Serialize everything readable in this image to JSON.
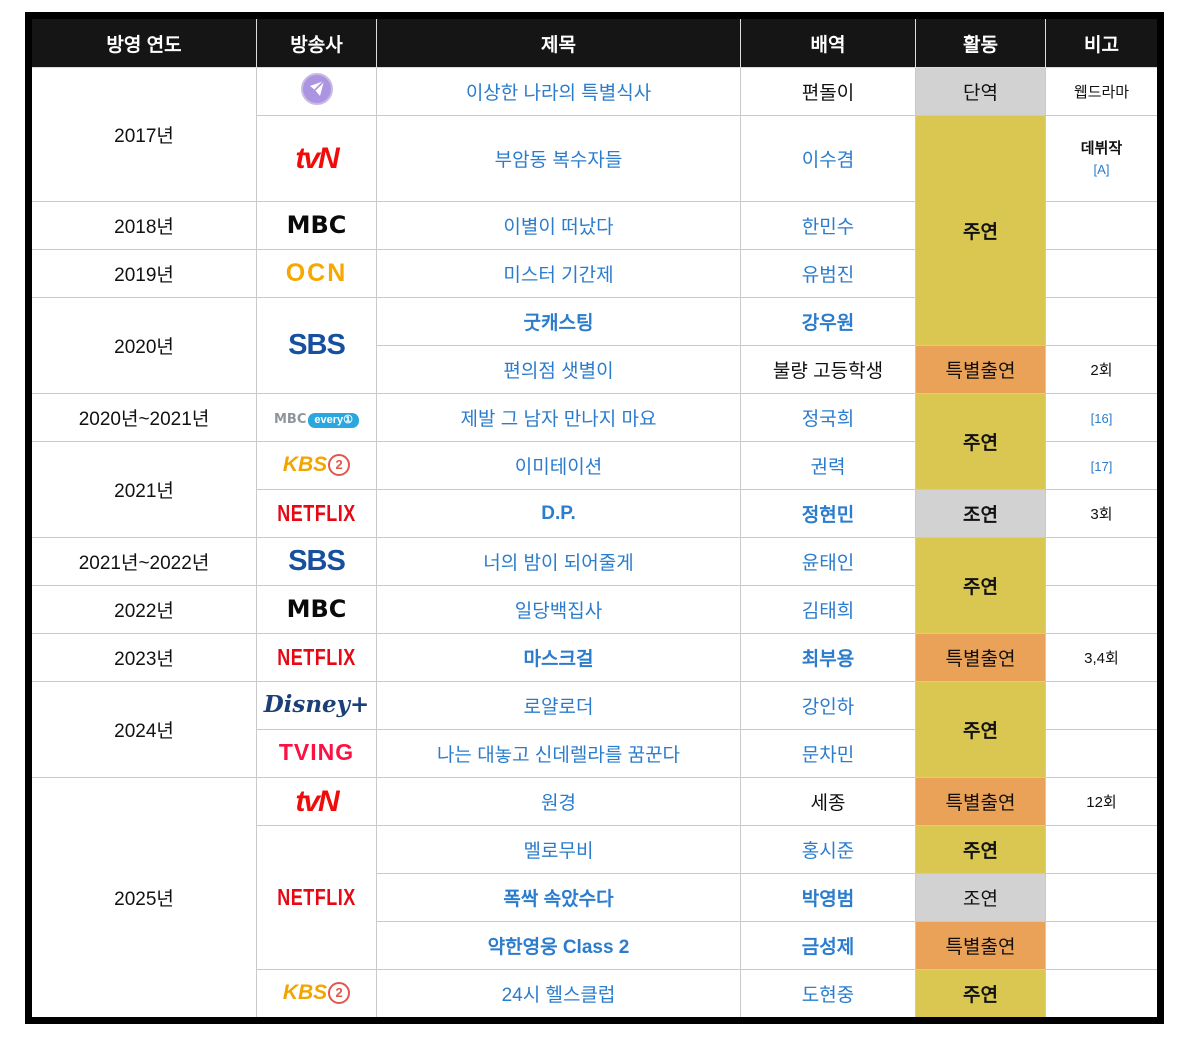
{
  "table": {
    "headers": [
      "방영 연도",
      "방송사",
      "제목",
      "배역",
      "활동",
      "비고"
    ],
    "colors": {
      "header_bg": "#151515",
      "lead_bg": "#d9c752",
      "special_bg": "#eaa158",
      "minor_bg": "#d2d2d2",
      "link_blue": "#2b7ccd",
      "grid": "#c9c9c9"
    },
    "logos": {
      "purple-play": {
        "name": "purple-play-logo",
        "color": "#ab95e2"
      },
      "tvn": {
        "name": "tvn-logo",
        "text": "tvN"
      },
      "mbc": {
        "name": "mbc-logo",
        "text": "MBC"
      },
      "ocn": {
        "name": "ocn-logo",
        "text": "OCN"
      },
      "sbs": {
        "name": "sbs-logo",
        "text": "SBS"
      },
      "mbc-every1": {
        "name": "mbc-every1-logo",
        "text": "MBC",
        "badge": "every①"
      },
      "kbs2": {
        "name": "kbs2-logo",
        "text": "KBS",
        "num": "2"
      },
      "netflix": {
        "name": "netflix-logo",
        "text": "NETFLIX"
      },
      "disney-plus": {
        "name": "disney-plus-logo",
        "text": "Disney+"
      },
      "tving": {
        "name": "tving-logo",
        "text": "TVING"
      }
    },
    "activity_labels": {
      "lead": "주연",
      "support": "조연",
      "special": "특별출연",
      "minor": "단역"
    },
    "rows": [
      {
        "tall": false,
        "year": {
          "text": "2017년",
          "rowspan": 2
        },
        "channel": {
          "logo": "purple-play",
          "rowspan": 1
        },
        "title": {
          "text": "이상한 나라의 특별식사",
          "bold": false,
          "link": true
        },
        "role": {
          "text": "편돌이",
          "link": false,
          "bold": false
        },
        "activity": {
          "text": "단역",
          "type": "minor",
          "rowspan": 1,
          "bold": false
        },
        "note": {
          "lines": [
            {
              "text": "웹드라마",
              "kind": "plain"
            }
          ]
        }
      },
      {
        "tall": true,
        "channel": {
          "logo": "tvn",
          "rowspan": 1
        },
        "title": {
          "text": "부암동 복수자들",
          "bold": false,
          "link": true
        },
        "role": {
          "text": "이수겸",
          "link": true,
          "bold": false
        },
        "activity": {
          "text": "주연",
          "type": "lead",
          "rowspan": 4,
          "bold": true
        },
        "note": {
          "lines": [
            {
              "text": "데뷔작",
              "kind": "bold"
            },
            {
              "text": "[A]",
              "kind": "ref"
            }
          ]
        }
      },
      {
        "tall": false,
        "year": {
          "text": "2018년",
          "rowspan": 1
        },
        "channel": {
          "logo": "mbc",
          "rowspan": 1
        },
        "title": {
          "text": "이별이 떠났다",
          "bold": false,
          "link": true
        },
        "role": {
          "text": "한민수",
          "link": true,
          "bold": false
        },
        "note": {
          "lines": []
        }
      },
      {
        "tall": false,
        "year": {
          "text": "2019년",
          "rowspan": 1
        },
        "channel": {
          "logo": "ocn",
          "rowspan": 1
        },
        "title": {
          "text": "미스터 기간제",
          "bold": false,
          "link": true
        },
        "role": {
          "text": "유범진",
          "link": true,
          "bold": false
        },
        "note": {
          "lines": []
        }
      },
      {
        "tall": false,
        "year": {
          "text": "2020년",
          "rowspan": 2
        },
        "channel": {
          "logo": "sbs",
          "rowspan": 2
        },
        "title": {
          "text": "굿캐스팅",
          "bold": true,
          "link": true
        },
        "role": {
          "text": "강우원",
          "link": true,
          "bold": true
        },
        "note": {
          "lines": []
        }
      },
      {
        "tall": false,
        "title": {
          "text": "편의점 샛별이",
          "bold": false,
          "link": true
        },
        "role": {
          "text": "불량 고등학생",
          "link": false,
          "bold": false
        },
        "activity": {
          "text": "특별출연",
          "type": "special",
          "rowspan": 1,
          "bold": false
        },
        "note": {
          "lines": [
            {
              "text": "2회",
              "kind": "plain"
            }
          ]
        }
      },
      {
        "tall": false,
        "year": {
          "text": "2020년~2021년",
          "rowspan": 1
        },
        "channel": {
          "logo": "mbc-every1",
          "rowspan": 1
        },
        "title": {
          "text": "제발 그 남자 만나지 마요",
          "bold": false,
          "link": true
        },
        "role": {
          "text": "정국희",
          "link": true,
          "bold": false
        },
        "activity": {
          "text": "주연",
          "type": "lead",
          "rowspan": 2,
          "bold": true
        },
        "note": {
          "lines": [
            {
              "text": "[16]",
              "kind": "ref"
            }
          ]
        }
      },
      {
        "tall": false,
        "year": {
          "text": "2021년",
          "rowspan": 2
        },
        "channel": {
          "logo": "kbs2",
          "rowspan": 1
        },
        "title": {
          "text": "이미테이션",
          "bold": false,
          "link": true
        },
        "role": {
          "text": "권력",
          "link": true,
          "bold": false
        },
        "note": {
          "lines": [
            {
              "text": "[17]",
              "kind": "ref"
            }
          ]
        }
      },
      {
        "tall": false,
        "channel": {
          "logo": "netflix",
          "rowspan": 1
        },
        "title": {
          "text": "D.P.",
          "bold": true,
          "link": true
        },
        "role": {
          "text": "정현민",
          "link": true,
          "bold": true
        },
        "activity": {
          "text": "조연",
          "type": "minor",
          "rowspan": 1,
          "bold": true
        },
        "note": {
          "lines": [
            {
              "text": "3회",
              "kind": "plain"
            }
          ]
        }
      },
      {
        "tall": false,
        "year": {
          "text": "2021년~2022년",
          "rowspan": 1
        },
        "channel": {
          "logo": "sbs",
          "rowspan": 1
        },
        "title": {
          "text": "너의 밤이 되어줄게",
          "bold": false,
          "link": true
        },
        "role": {
          "text": "윤태인",
          "link": true,
          "bold": false
        },
        "activity": {
          "text": "주연",
          "type": "lead",
          "rowspan": 2,
          "bold": true
        },
        "note": {
          "lines": []
        }
      },
      {
        "tall": false,
        "year": {
          "text": "2022년",
          "rowspan": 1
        },
        "channel": {
          "logo": "mbc",
          "rowspan": 1
        },
        "title": {
          "text": "일당백집사",
          "bold": false,
          "link": true
        },
        "role": {
          "text": "김태희",
          "link": true,
          "bold": false
        },
        "note": {
          "lines": []
        }
      },
      {
        "tall": false,
        "year": {
          "text": "2023년",
          "rowspan": 1
        },
        "channel": {
          "logo": "netflix",
          "rowspan": 1
        },
        "title": {
          "text": "마스크걸",
          "bold": true,
          "link": true
        },
        "role": {
          "text": "최부용",
          "link": true,
          "bold": true
        },
        "activity": {
          "text": "특별출연",
          "type": "special",
          "rowspan": 1,
          "bold": false
        },
        "note": {
          "lines": [
            {
              "text": "3,4회",
              "kind": "plain"
            }
          ]
        }
      },
      {
        "tall": false,
        "year": {
          "text": "2024년",
          "rowspan": 2
        },
        "channel": {
          "logo": "disney-plus",
          "rowspan": 1
        },
        "title": {
          "text": "로얄로더",
          "bold": false,
          "link": true
        },
        "role": {
          "text": "강인하",
          "link": true,
          "bold": false
        },
        "activity": {
          "text": "주연",
          "type": "lead",
          "rowspan": 2,
          "bold": true
        },
        "note": {
          "lines": []
        }
      },
      {
        "tall": false,
        "channel": {
          "logo": "tving",
          "rowspan": 1
        },
        "title": {
          "text": "나는 대놓고 신데렐라를 꿈꾼다",
          "bold": false,
          "link": true
        },
        "role": {
          "text": "문차민",
          "link": true,
          "bold": false
        },
        "note": {
          "lines": []
        }
      },
      {
        "tall": false,
        "year": {
          "text": "2025년",
          "rowspan": 5
        },
        "channel": {
          "logo": "tvn",
          "rowspan": 1
        },
        "title": {
          "text": "원경",
          "bold": false,
          "link": true
        },
        "role": {
          "text": "세종",
          "link": false,
          "bold": false
        },
        "activity": {
          "text": "특별출연",
          "type": "special",
          "rowspan": 1,
          "bold": false
        },
        "note": {
          "lines": [
            {
              "text": "12회",
              "kind": "plain"
            }
          ]
        }
      },
      {
        "tall": false,
        "channel": {
          "logo": "netflix",
          "rowspan": 3
        },
        "title": {
          "text": "멜로무비",
          "bold": false,
          "link": true
        },
        "role": {
          "text": "홍시준",
          "link": true,
          "bold": false
        },
        "activity": {
          "text": "주연",
          "type": "lead",
          "rowspan": 1,
          "bold": true
        },
        "note": {
          "lines": []
        }
      },
      {
        "tall": false,
        "title": {
          "text": "폭싹 속았수다",
          "bold": true,
          "link": true
        },
        "role": {
          "text": "박영범",
          "link": true,
          "bold": true
        },
        "activity": {
          "text": "조연",
          "type": "minor",
          "rowspan": 1,
          "bold": false
        },
        "note": {
          "lines": []
        }
      },
      {
        "tall": false,
        "title": {
          "text": "약한영웅 Class 2",
          "bold": true,
          "link": true
        },
        "role": {
          "text": "금성제",
          "link": true,
          "bold": true
        },
        "activity": {
          "text": "특별출연",
          "type": "special",
          "rowspan": 1,
          "bold": false
        },
        "note": {
          "lines": []
        }
      },
      {
        "tall": false,
        "channel": {
          "logo": "kbs2",
          "rowspan": 1
        },
        "title": {
          "text": "24시 헬스클럽",
          "bold": false,
          "link": true
        },
        "role": {
          "text": "도현중",
          "link": true,
          "bold": false
        },
        "activity": {
          "text": "주연",
          "type": "lead",
          "rowspan": 1,
          "bold": true
        },
        "note": {
          "lines": []
        }
      }
    ]
  }
}
